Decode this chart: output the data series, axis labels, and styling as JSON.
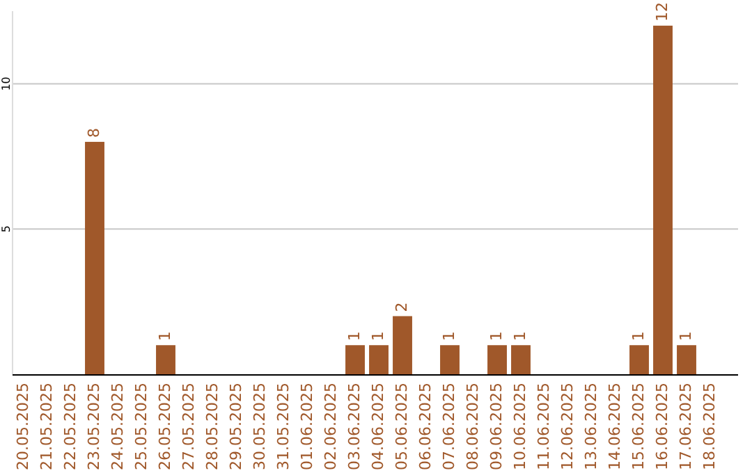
{
  "chart_data": {
    "type": "bar",
    "categories": [
      "20.05.2025",
      "21.05.2025",
      "22.05.2025",
      "23.05.2025",
      "24.05.2025",
      "25.05.2025",
      "26.05.2025",
      "27.05.2025",
      "28.05.2025",
      "29.05.2025",
      "30.05.2025",
      "31.05.2025",
      "01.06.2025",
      "02.06.2025",
      "03.06.2025",
      "04.06.2025",
      "05.06.2025",
      "06.06.2025",
      "07.06.2025",
      "08.06.2025",
      "09.06.2025",
      "10.06.2025",
      "11.06.2025",
      "12.06.2025",
      "13.06.2025",
      "14.06.2025",
      "15.06.2025",
      "16.06.2025",
      "17.06.2025",
      "18.06.2025"
    ],
    "values": [
      0,
      0,
      0,
      8,
      0,
      0,
      1,
      0,
      0,
      0,
      0,
      0,
      0,
      0,
      1,
      1,
      2,
      0,
      1,
      0,
      1,
      1,
      0,
      0,
      0,
      0,
      1,
      12,
      1,
      0
    ],
    "value_labels": [
      null,
      null,
      null,
      "8",
      null,
      null,
      "1",
      null,
      null,
      null,
      null,
      null,
      null,
      null,
      "1",
      "1",
      "2",
      null,
      "1",
      null,
      "1",
      "1",
      null,
      null,
      null,
      null,
      "1",
      "12",
      "1",
      null
    ],
    "color": "#a0582a",
    "ylim": [
      0,
      12.5
    ],
    "yticks": [
      5,
      10
    ],
    "grid": "y"
  }
}
